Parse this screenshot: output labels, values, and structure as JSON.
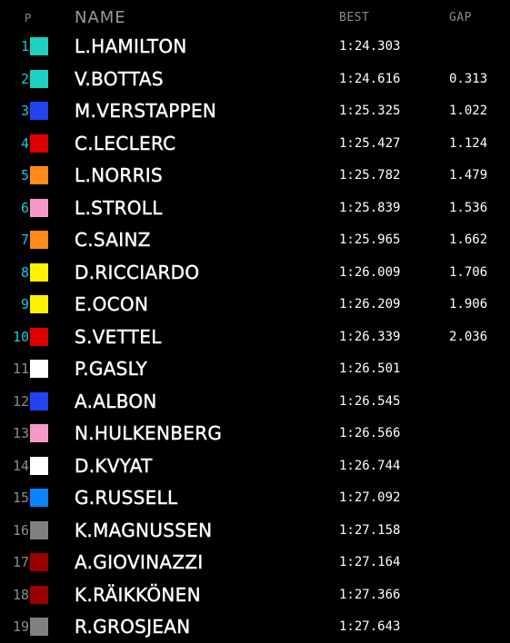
{
  "header": {
    "pos_label": "P",
    "name_label": "NAME",
    "best_label": "BEST",
    "gap_label": "GAP"
  },
  "rows": [
    {
      "pos": "1",
      "name": "L.HAMILTON",
      "best": "1:24.303",
      "gap": "",
      "color": "#1fcfc0",
      "status": "in"
    },
    {
      "pos": "2",
      "name": "V.BOTTAS",
      "best": "1:24.616",
      "gap": "0.313",
      "color": "#1fcfc0",
      "status": "in"
    },
    {
      "pos": "3",
      "name": "M.VERSTAPPEN",
      "best": "1:25.325",
      "gap": "1.022",
      "color": "#2244ee",
      "status": "in"
    },
    {
      "pos": "4",
      "name": "C.LECLERC",
      "best": "1:25.427",
      "gap": "1.124",
      "color": "#dd0000",
      "status": "in"
    },
    {
      "pos": "5",
      "name": "L.NORRIS",
      "best": "1:25.782",
      "gap": "1.479",
      "color": "#ff8a1a",
      "status": "in"
    },
    {
      "pos": "6",
      "name": "L.STROLL",
      "best": "1:25.839",
      "gap": "1.536",
      "color": "#f59ac8",
      "status": "in"
    },
    {
      "pos": "7",
      "name": "C.SAINZ",
      "best": "1:25.965",
      "gap": "1.662",
      "color": "#ff8a1a",
      "status": "in"
    },
    {
      "pos": "8",
      "name": "D.RICCIARDO",
      "best": "1:26.009",
      "gap": "1.706",
      "color": "#fff200",
      "status": "in"
    },
    {
      "pos": "9",
      "name": "E.OCON",
      "best": "1:26.209",
      "gap": "1.906",
      "color": "#fff200",
      "status": "in"
    },
    {
      "pos": "10",
      "name": "S.VETTEL",
      "best": "1:26.339",
      "gap": "2.036",
      "color": "#dd0000",
      "status": "in"
    },
    {
      "pos": "11",
      "name": "P.GASLY",
      "best": "1:26.501",
      "gap": "",
      "color": "#ffffff",
      "status": "out"
    },
    {
      "pos": "12",
      "name": "A.ALBON",
      "best": "1:26.545",
      "gap": "",
      "color": "#2244ee",
      "status": "out"
    },
    {
      "pos": "13",
      "name": "N.HULKENBERG",
      "best": "1:26.566",
      "gap": "",
      "color": "#f59ac8",
      "status": "out"
    },
    {
      "pos": "14",
      "name": "D.KVYAT",
      "best": "1:26.744",
      "gap": "",
      "color": "#ffffff",
      "status": "out"
    },
    {
      "pos": "15",
      "name": "G.RUSSELL",
      "best": "1:27.092",
      "gap": "",
      "color": "#0a84ff",
      "status": "out"
    },
    {
      "pos": "16",
      "name": "K.MAGNUSSEN",
      "best": "1:27.158",
      "gap": "",
      "color": "#808080",
      "status": "out"
    },
    {
      "pos": "17",
      "name": "A.GIOVINAZZI",
      "best": "1:27.164",
      "gap": "",
      "color": "#990000",
      "status": "out"
    },
    {
      "pos": "18",
      "name": "K.RÄIKKÖNEN",
      "best": "1:27.366",
      "gap": "",
      "color": "#990000",
      "status": "out"
    },
    {
      "pos": "19",
      "name": "R.GROSJEAN",
      "best": "1:27.643",
      "gap": "",
      "color": "#808080",
      "status": "out"
    }
  ]
}
